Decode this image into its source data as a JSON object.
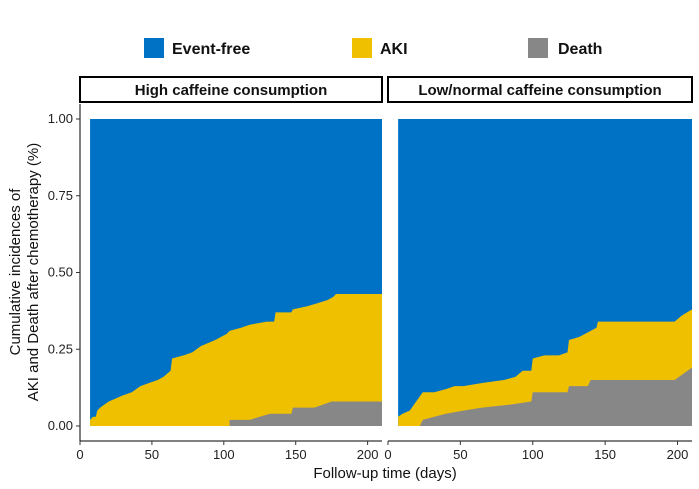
{
  "chart_data": {
    "type": "area",
    "subtype": "stacked-step-area, faceted",
    "legend": {
      "position": "top",
      "items": [
        {
          "name": "Event-free",
          "color": "#0072C6"
        },
        {
          "name": "AKI",
          "color": "#EFC000"
        },
        {
          "name": "Death",
          "color": "#878787"
        }
      ]
    },
    "xlabel": "Follow-up time (days)",
    "ylabel_line1": "Cumulative incidences of",
    "ylabel_line2": "AKI and Death after chemotherapy (%)",
    "xlim": [
      0,
      210
    ],
    "ylim": [
      0,
      1
    ],
    "xticks": [
      0,
      50,
      100,
      150,
      200
    ],
    "ytick_labels": [
      "0.00",
      "0.25",
      "0.50",
      "0.75",
      "1.00"
    ],
    "yticks": [
      0,
      0.25,
      0.5,
      0.75,
      1.0
    ],
    "grid": false,
    "panels": [
      {
        "title": "High caffeine consumption",
        "x_start": 7,
        "x_end": 210,
        "death": [
          [
            7,
            0
          ],
          [
            104,
            0
          ],
          [
            104,
            0.02
          ],
          [
            118,
            0.02
          ],
          [
            125,
            0.03
          ],
          [
            132,
            0.04
          ],
          [
            147,
            0.04
          ],
          [
            148,
            0.06
          ],
          [
            163,
            0.06
          ],
          [
            175,
            0.08
          ],
          [
            210,
            0.08
          ]
        ],
        "aki_plus_death": [
          [
            7,
            0.02
          ],
          [
            9,
            0.03
          ],
          [
            11,
            0.03
          ],
          [
            12,
            0.05
          ],
          [
            14,
            0.06
          ],
          [
            17,
            0.07
          ],
          [
            20,
            0.08
          ],
          [
            25,
            0.09
          ],
          [
            30,
            0.1
          ],
          [
            36,
            0.11
          ],
          [
            42,
            0.13
          ],
          [
            48,
            0.14
          ],
          [
            54,
            0.15
          ],
          [
            58,
            0.16
          ],
          [
            63,
            0.18
          ],
          [
            64,
            0.22
          ],
          [
            72,
            0.23
          ],
          [
            78,
            0.24
          ],
          [
            84,
            0.26
          ],
          [
            94,
            0.28
          ],
          [
            102,
            0.3
          ],
          [
            104,
            0.31
          ],
          [
            112,
            0.32
          ],
          [
            118,
            0.33
          ],
          [
            130,
            0.34
          ],
          [
            135,
            0.34
          ],
          [
            136,
            0.37
          ],
          [
            147,
            0.37
          ],
          [
            148,
            0.38
          ],
          [
            158,
            0.39
          ],
          [
            165,
            0.4
          ],
          [
            172,
            0.41
          ],
          [
            176,
            0.42
          ],
          [
            178,
            0.43
          ],
          [
            210,
            0.43
          ]
        ]
      },
      {
        "title": "Low/normal caffeine consumption",
        "x_start": 7,
        "x_end": 210,
        "death": [
          [
            7,
            0
          ],
          [
            22,
            0
          ],
          [
            24,
            0.02
          ],
          [
            32,
            0.03
          ],
          [
            40,
            0.04
          ],
          [
            52,
            0.05
          ],
          [
            65,
            0.06
          ],
          [
            85,
            0.07
          ],
          [
            99,
            0.08
          ],
          [
            100,
            0.11
          ],
          [
            124,
            0.11
          ],
          [
            125,
            0.13
          ],
          [
            138,
            0.13
          ],
          [
            140,
            0.15
          ],
          [
            198,
            0.15
          ],
          [
            204,
            0.17
          ],
          [
            210,
            0.19
          ]
        ],
        "aki_plus_death": [
          [
            7,
            0.03
          ],
          [
            10,
            0.04
          ],
          [
            15,
            0.05
          ],
          [
            18,
            0.07
          ],
          [
            21,
            0.09
          ],
          [
            24,
            0.11
          ],
          [
            32,
            0.11
          ],
          [
            40,
            0.12
          ],
          [
            46,
            0.13
          ],
          [
            52,
            0.13
          ],
          [
            65,
            0.14
          ],
          [
            80,
            0.15
          ],
          [
            88,
            0.16
          ],
          [
            93,
            0.18
          ],
          [
            99,
            0.18
          ],
          [
            100,
            0.22
          ],
          [
            108,
            0.23
          ],
          [
            118,
            0.23
          ],
          [
            124,
            0.24
          ],
          [
            125,
            0.28
          ],
          [
            132,
            0.29
          ],
          [
            140,
            0.31
          ],
          [
            144,
            0.32
          ],
          [
            145,
            0.34
          ],
          [
            198,
            0.34
          ],
          [
            203,
            0.36
          ],
          [
            210,
            0.38
          ]
        ]
      }
    ]
  }
}
